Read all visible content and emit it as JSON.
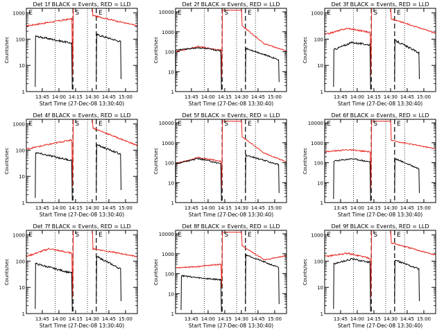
{
  "page": {
    "background": "#ffffff"
  },
  "colors": {
    "events": "#000000",
    "lld": "#e8221b",
    "axis": "#000000"
  },
  "chart_data": {
    "type": "line",
    "layout": "3x3 grid",
    "common": {
      "xlabel": "Start Time (27-Dec-08 13:30:40)",
      "ylabel": "Counts/sec",
      "yscale": "log",
      "xlim_minutes_after_13_30_40": [
        0,
        100
      ],
      "x_ticks": [
        {
          "label": "13:45",
          "minute": 14.33
        },
        {
          "label": "14:00",
          "minute": 29.33
        },
        {
          "label": "14:15",
          "minute": 44.33
        },
        {
          "label": "14:30",
          "minute": 59.33
        },
        {
          "label": "14:45",
          "minute": 74.33
        },
        {
          "label": "15:00",
          "minute": 89.33
        }
      ],
      "series_names": [
        "Events (BLACK)",
        "LLD (RED)"
      ],
      "marker_letters": [
        "E",
        "S",
        "E"
      ],
      "dashed_lines_minute": [
        42,
        63
      ],
      "dotted_lines_minute": [
        26,
        55,
        72
      ]
    },
    "panels": [
      {
        "title": "Det 1f BLACK = Events, RED = LLD",
        "y_tick_labels": [
          "1",
          "10",
          "100",
          "1000"
        ],
        "ylim": [
          1,
          1500
        ],
        "events": {
          "pre_start": 8,
          "pre": [
            130,
            70
          ],
          "post_start": 63,
          "post": [
            150,
            80
          ],
          "post_end": 85
        },
        "lld": {
          "pre": [
            320,
            600
          ],
          "dip": 4,
          "peak": 1500,
          "decay": [
            800,
            320
          ]
        }
      },
      {
        "title": "Det 2f BLACK = Events, RED = LLD",
        "y_tick_labels": [
          "1",
          "10",
          "100",
          "1000",
          "10000"
        ],
        "ylim": [
          1,
          15000
        ],
        "events": {
          "pre_start": 0,
          "pre": [
            120,
            160,
            110
          ],
          "post_start": 63,
          "post": [
            150,
            40
          ],
          "post_end": 93
        },
        "lld": {
          "pre": [
            100,
            180,
            120
          ],
          "dip": 5,
          "peak": 12000,
          "decay": [
            2000,
            250,
            110
          ]
        }
      },
      {
        "title": "Det 3f BLACK = Events, RED = LLD",
        "y_tick_labels": [
          "1",
          "10",
          "100",
          "1000"
        ],
        "ylim": [
          1,
          1500
        ],
        "events": {
          "pre_start": 8,
          "pre": [
            40,
            75,
            60
          ],
          "post_start": 63,
          "post": [
            90,
            30
          ],
          "post_end": 85
        },
        "lld": {
          "pre": [
            150,
            260,
            180
          ],
          "dip": 4,
          "peak": 1500,
          "decay": [
            600,
            170
          ]
        }
      },
      {
        "title": "Det 4f BLACK = Events, RED = LLD",
        "y_tick_labels": [
          "1",
          "10",
          "100",
          "1000"
        ],
        "ylim": [
          1,
          1500
        ],
        "events": {
          "pre_start": 8,
          "pre": [
            80,
            40
          ],
          "post_start": 63,
          "post": [
            160,
            70
          ],
          "post_end": 85
        },
        "lld": {
          "pre": [
            110,
            250
          ],
          "dip": 4,
          "peak": 1500,
          "decay": [
            700,
            150
          ]
        }
      },
      {
        "title": "Det 5f BLACK = Events, RED = LLD",
        "y_tick_labels": [
          "1",
          "10",
          "100",
          "1000",
          "10000"
        ],
        "ylim": [
          1,
          15000
        ],
        "events": {
          "pre_start": 0,
          "pre": [
            90,
            160,
            90
          ],
          "post_start": 63,
          "post": [
            240,
            80
          ],
          "post_end": 93
        },
        "lld": {
          "pre": [
            90,
            180,
            120
          ],
          "dip": 5,
          "peak": 12000,
          "decay": [
            2000,
            300,
            110
          ]
        }
      },
      {
        "title": "Det 6f BLACK = Events, RED = LLD",
        "y_tick_labels": [
          "1",
          "10",
          "100",
          "1000",
          "10000"
        ],
        "ylim": [
          1,
          15000
        ],
        "events": {
          "pre_start": 8,
          "pre": [
            120,
            160,
            110
          ],
          "post_start": 63,
          "post": [
            160,
            50
          ],
          "post_end": 85
        },
        "lld": {
          "pre": [
            350,
            450,
            350
          ],
          "dip": 5,
          "peak": 12000,
          "decay": [
            1300,
            500
          ]
        }
      },
      {
        "title": "Det 7f BLACK = Events, RED = LLD",
        "y_tick_labels": [
          "1",
          "10",
          "100",
          "1000"
        ],
        "ylim": [
          1,
          1500
        ],
        "events": {
          "pre_start": 8,
          "pre": [
            80,
            35
          ],
          "post_start": 63,
          "post": [
            150,
            50
          ],
          "post_end": 85
        },
        "lld": {
          "pre": [
            150,
            300,
            200
          ],
          "dip": 4,
          "peak": 1500,
          "decay": [
            300,
            150
          ]
        }
      },
      {
        "title": "Det 8f BLACK = Events, RED = LLD",
        "y_tick_labels": [
          "1",
          "10",
          "100",
          "1000",
          "10000"
        ],
        "ylim": [
          1,
          15000
        ],
        "events": {
          "pre_start": 5,
          "pre": [
            80,
            60,
            50
          ],
          "post_start": 63,
          "post": [
            900,
            200
          ],
          "post_end": 93
        },
        "lld": {
          "pre": [
            200,
            230,
            300
          ],
          "dip": 20,
          "peak": 12000,
          "decay": [
            2500,
            500,
            800
          ]
        }
      },
      {
        "title": "Det 9f BLACK = Events, RED = LLD",
        "y_tick_labels": [
          "1",
          "10",
          "100",
          "1000"
        ],
        "ylim": [
          1,
          1500
        ],
        "events": {
          "pre_start": 8,
          "pre": [
            80,
            120,
            90
          ],
          "post_start": 63,
          "post": [
            110,
            50
          ],
          "post_end": 85
        },
        "lld": {
          "pre": [
            150,
            200,
            130
          ],
          "dip": 4,
          "peak": 1500,
          "decay": [
            500,
            170
          ]
        }
      }
    ]
  }
}
